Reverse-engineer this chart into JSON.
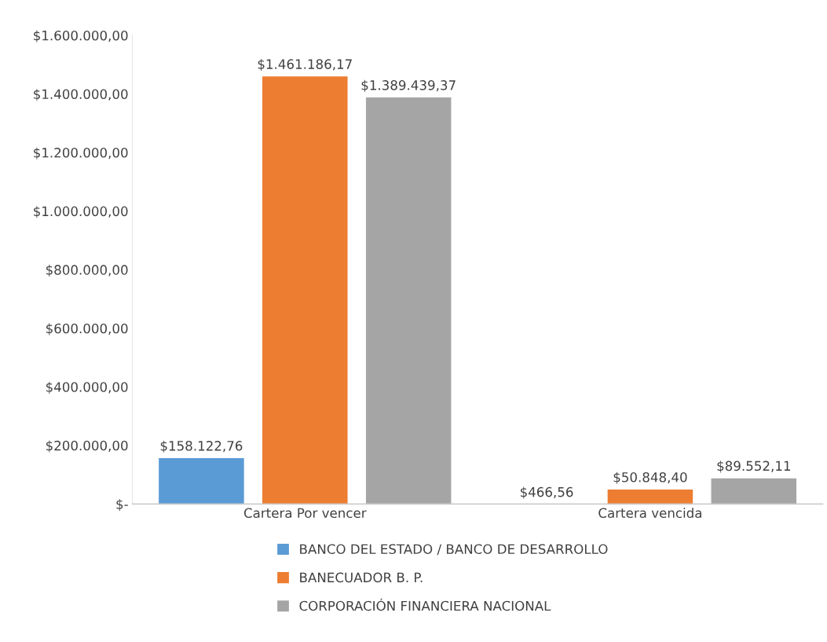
{
  "chart_data": {
    "type": "bar",
    "categories": [
      "Cartera Por vencer",
      "Cartera vencida"
    ],
    "series": [
      {
        "name": "BANCO DEL ESTADO / BANCO DE DESARROLLO",
        "color": "#5b9bd5",
        "values": [
          158122.76,
          466.56
        ],
        "value_labels": [
          "$158.122,76",
          "$466,56"
        ]
      },
      {
        "name": "BANECUADOR B. P.",
        "color": "#ed7d31",
        "values": [
          1461186.17,
          50848.4
        ],
        "value_labels": [
          "$1.461.186,17",
          "$50.848,40"
        ]
      },
      {
        "name": "CORPORACIÓN FINANCIERA NACIONAL",
        "color": "#a5a5a5",
        "values": [
          1389439.37,
          89552.11
        ],
        "value_labels": [
          "$1.389.439,37",
          "$89.552,11"
        ]
      }
    ],
    "ylim": [
      0,
      1600000
    ],
    "yticks": [
      {
        "value": 0,
        "label": "$-"
      },
      {
        "value": 200000,
        "label": "$200.000,00"
      },
      {
        "value": 400000,
        "label": "$400.000,00"
      },
      {
        "value": 600000,
        "label": "$600.000,00"
      },
      {
        "value": 800000,
        "label": "$800.000,00"
      },
      {
        "value": 1000000,
        "label": "$1.000.000,00"
      },
      {
        "value": 1200000,
        "label": "$1.200.000,00"
      },
      {
        "value": 1400000,
        "label": "$1.400.000,00"
      },
      {
        "value": 1600000,
        "label": "$1.600.000,00"
      }
    ],
    "grid": false,
    "legend": "bottom"
  }
}
